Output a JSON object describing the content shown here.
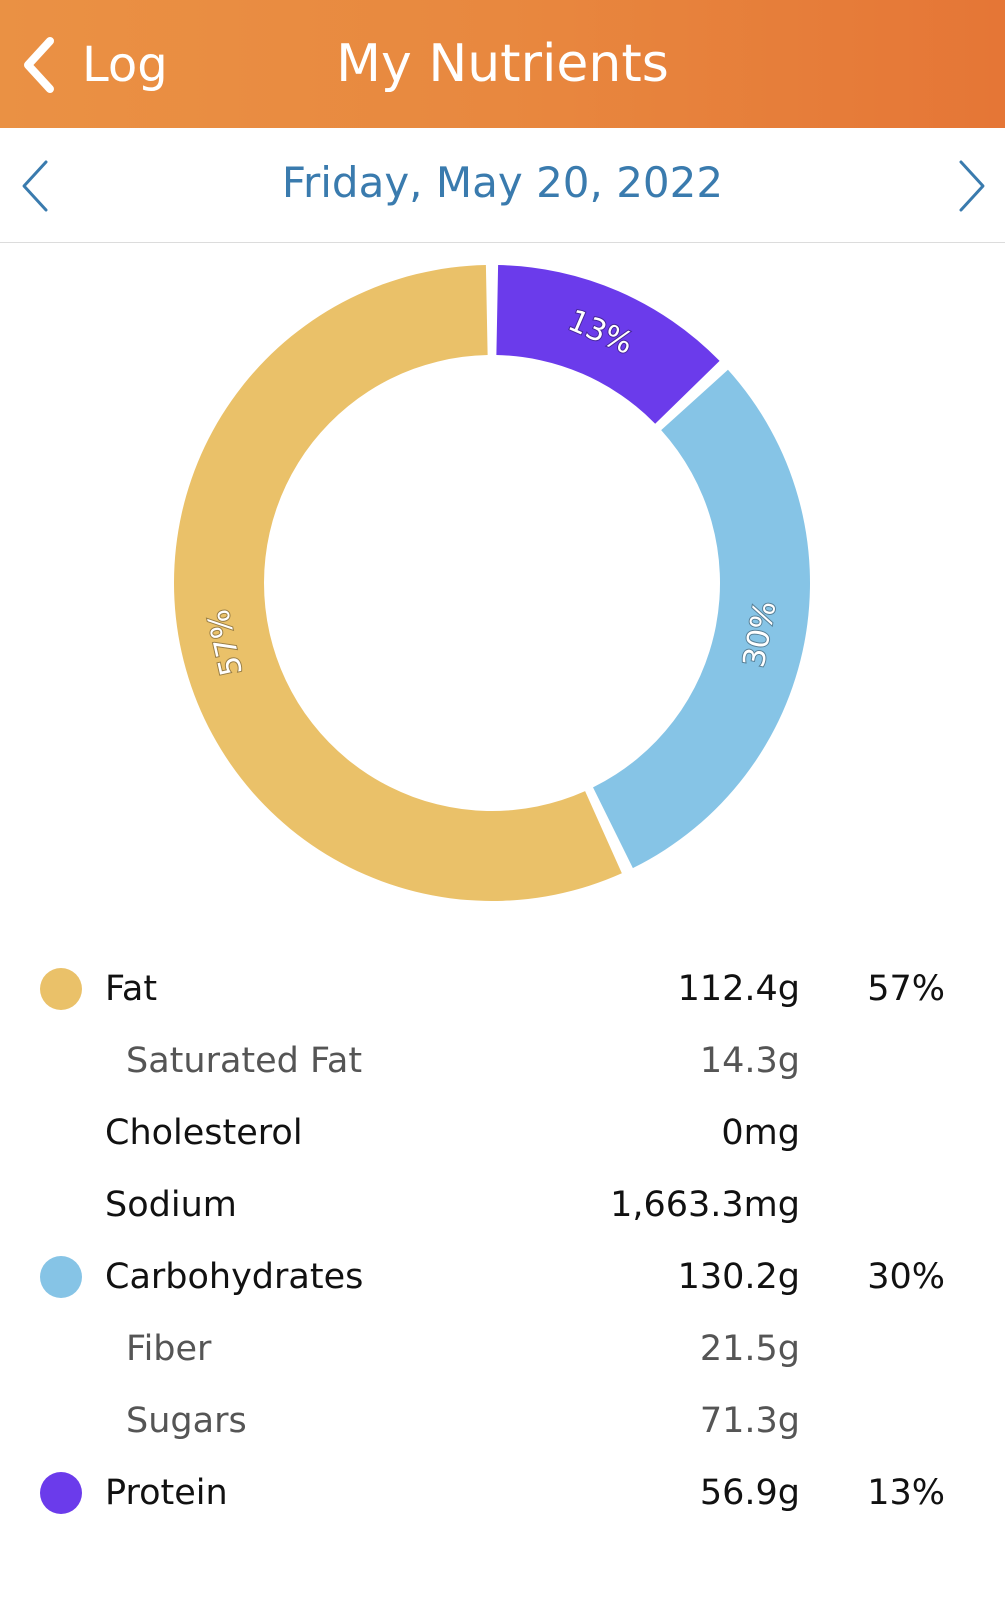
{
  "header": {
    "back_label": "Log",
    "title": "My Nutrients",
    "background_color": "#e8883f"
  },
  "date_bar": {
    "date": "Friday, May 20, 2022",
    "prev_icon": "chevron-left-icon",
    "next_icon": "chevron-right-icon",
    "accent_color": "#3a7bae"
  },
  "chart_data": {
    "type": "pie",
    "style": "donut",
    "slices": [
      {
        "label": "Protein",
        "value": 13,
        "display": "13%",
        "color": "#6b3beb"
      },
      {
        "label": "Carbohydrates",
        "value": 30,
        "display": "30%",
        "color": "#86c4e6"
      },
      {
        "label": "Fat",
        "value": 57,
        "display": "57%",
        "color": "#eac169"
      }
    ]
  },
  "nutrients": [
    {
      "name": "Fat",
      "amount": "112.4g",
      "percent": "57%",
      "color": "#eac169",
      "sub": false
    },
    {
      "name": "Saturated Fat",
      "amount": "14.3g",
      "percent": "",
      "color": "",
      "sub": true
    },
    {
      "name": "Cholesterol",
      "amount": "0mg",
      "percent": "",
      "color": "",
      "sub": false
    },
    {
      "name": "Sodium",
      "amount": "1,663.3mg",
      "percent": "",
      "color": "",
      "sub": false
    },
    {
      "name": "Carbohydrates",
      "amount": "130.2g",
      "percent": "30%",
      "color": "#86c4e6",
      "sub": false
    },
    {
      "name": "Fiber",
      "amount": "21.5g",
      "percent": "",
      "color": "",
      "sub": true
    },
    {
      "name": "Sugars",
      "amount": "71.3g",
      "percent": "",
      "color": "",
      "sub": true
    },
    {
      "name": "Protein",
      "amount": "56.9g",
      "percent": "13%",
      "color": "#6b3beb",
      "sub": false
    }
  ]
}
